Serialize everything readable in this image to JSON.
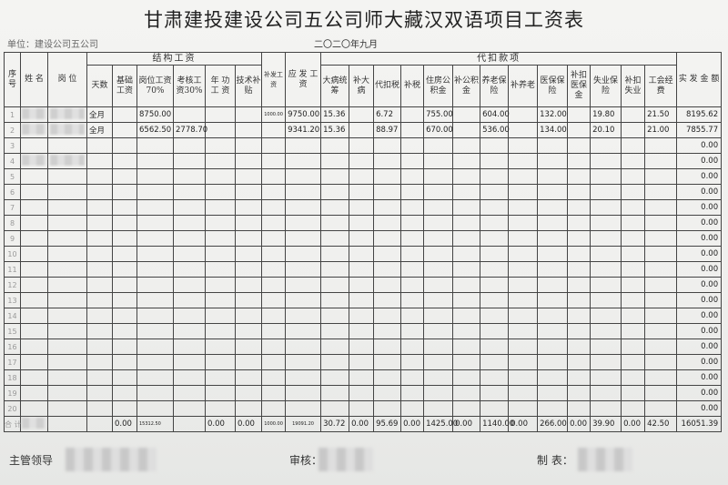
{
  "title": "甘肃建投建设公司五公司师大藏汉双语项目工资表",
  "unit": "单位：建设公司五公司",
  "date": "二〇二〇年九月",
  "headers": {
    "seq": "序号",
    "name": "姓 名",
    "position": "岗 位",
    "structural_group": "结构工资",
    "deductions_group": "代扣款项",
    "reissue": "补发工资",
    "gross": "应 发 工 资",
    "net": "实 发 金 额",
    "structural": [
      "天数",
      "基础工资",
      "岗位工资70%",
      "考核工资30%",
      "年 功 工 资",
      "技术补贴"
    ],
    "deductions": [
      "大病统筹",
      "补大病",
      "代扣税",
      "补税",
      "住房公积金",
      "补公积金",
      "养老保险",
      "补养老",
      "医保保险",
      "补扣医保金",
      "失业保险",
      "补扣失业",
      "工会经费"
    ]
  },
  "rows": [
    {
      "seq": "1",
      "days": "全月",
      "basic": "",
      "post": "8750.00",
      "assess": "",
      "seniority": "",
      "tech": "",
      "reissue": "1000.00",
      "gross": "9750.00",
      "d": [
        "15.36",
        "",
        "6.72",
        "",
        "755.00",
        "",
        "604.00",
        "",
        "132.00",
        "",
        "19.80",
        "",
        "21.50"
      ],
      "net": "8195.62"
    },
    {
      "seq": "2",
      "days": "全月",
      "basic": "",
      "post": "6562.50",
      "assess": "2778.70",
      "seniority": "",
      "tech": "",
      "reissue": "",
      "gross": "9341.20",
      "d": [
        "15.36",
        "",
        "88.97",
        "",
        "670.00",
        "",
        "536.00",
        "",
        "134.00",
        "",
        "20.10",
        "",
        "21.00"
      ],
      "net": "7855.77"
    },
    {
      "seq": "3",
      "net": "0.00"
    },
    {
      "seq": "4",
      "net": "0.00"
    },
    {
      "seq": "5",
      "net": "0.00"
    },
    {
      "seq": "6",
      "net": "0.00"
    },
    {
      "seq": "7",
      "net": "0.00"
    },
    {
      "seq": "8",
      "net": "0.00"
    },
    {
      "seq": "9",
      "net": "0.00"
    },
    {
      "seq": "10",
      "net": "0.00"
    },
    {
      "seq": "11",
      "net": "0.00"
    },
    {
      "seq": "12",
      "net": "0.00"
    },
    {
      "seq": "13",
      "net": "0.00"
    },
    {
      "seq": "14",
      "net": "0.00"
    },
    {
      "seq": "15",
      "net": "0.00"
    },
    {
      "seq": "16",
      "net": "0.00"
    },
    {
      "seq": "17",
      "net": "0.00"
    },
    {
      "seq": "18",
      "net": "0.00"
    },
    {
      "seq": "19",
      "net": "0.00"
    },
    {
      "seq": "20",
      "net": "0.00"
    }
  ],
  "total": {
    "label": "合 计",
    "days": "",
    "basic": "0.00",
    "post": "15312.50",
    "assess": "",
    "seniority": "0.00",
    "tech": "0.00",
    "reissue": "1000.00",
    "gross": "19091.20",
    "d": [
      "30.72",
      "0.00",
      "95.69",
      "0.00",
      "1425.00",
      "0.00",
      "1140.00",
      "0.00",
      "266.00",
      "0.00",
      "39.90",
      "0.00",
      "42.50"
    ],
    "net": "16051.39"
  },
  "footer": {
    "supervisor": "主管领导",
    "reviewer": "审核：",
    "preparer": "制 表："
  }
}
